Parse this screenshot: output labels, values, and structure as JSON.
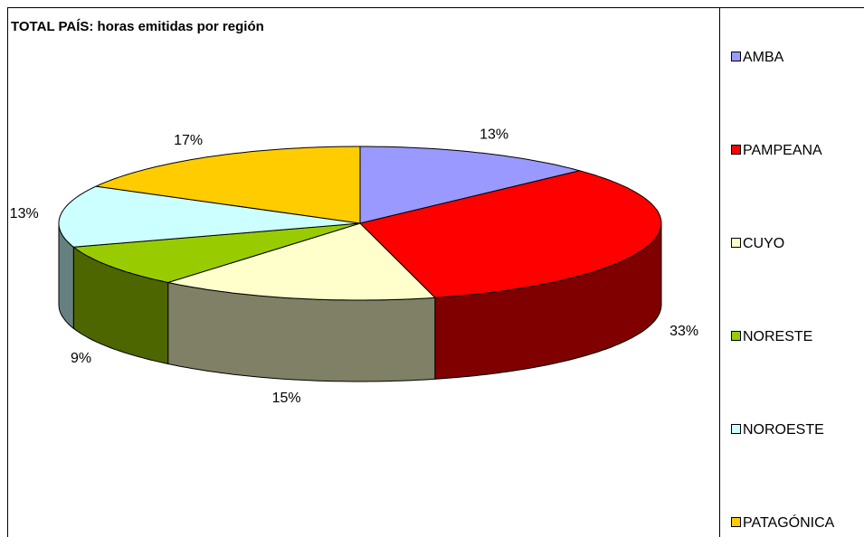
{
  "chart_data": {
    "type": "pie3d",
    "title": "TOTAL PAÍS: horas emitidas por región",
    "categories": [
      "AMBA",
      "PAMPEANA",
      "CUYO",
      "NORESTE",
      "NOROESTE",
      "PATAGÓNICA"
    ],
    "values": [
      13,
      33,
      15,
      9,
      13,
      17
    ],
    "value_labels": [
      "13%",
      "33%",
      "15%",
      "9%",
      "13%",
      "17%"
    ],
    "colors": [
      "#9999ff",
      "#ff0000",
      "#ffffcc",
      "#99cc00",
      "#ccffff",
      "#ffcc00"
    ],
    "legend": "right"
  }
}
